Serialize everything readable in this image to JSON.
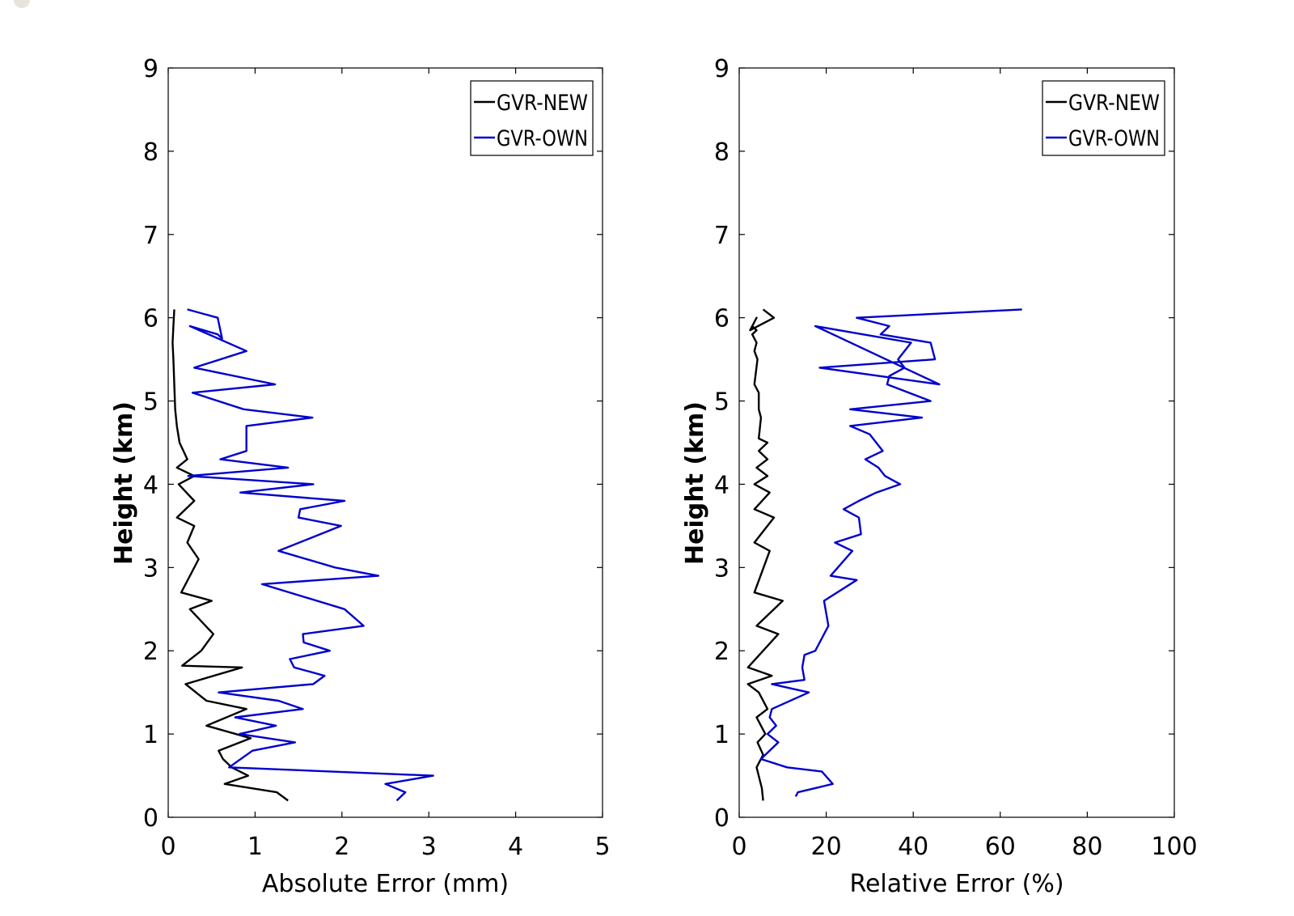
{
  "chart_data": [
    {
      "type": "line",
      "title": "",
      "xlabel": "Absolute Error (mm)",
      "ylabel": "Height (km)",
      "xlim": [
        0,
        5
      ],
      "ylim": [
        0,
        9
      ],
      "xticks": [
        0,
        1,
        2,
        3,
        4,
        5
      ],
      "yticks": [
        0,
        1,
        2,
        3,
        4,
        5,
        6,
        7,
        8,
        9
      ],
      "legend": "top-right",
      "grid": false,
      "series": [
        {
          "name": "GVR-NEW",
          "color": "#000000",
          "x": [
            1.38,
            1.25,
            0.65,
            0.92,
            0.73,
            0.63,
            0.58,
            0.95,
            0.44,
            0.9,
            0.44,
            0.2,
            0.85,
            0.16,
            0.38,
            0.52,
            0.25,
            0.5,
            0.15,
            0.35,
            0.22,
            0.3,
            0.1,
            0.3,
            0.12,
            0.3,
            0.1,
            0.22,
            0.13,
            0.1,
            0.08,
            0.07,
            0.06,
            0.05,
            0.06,
            0.07
          ],
          "y": [
            0.2,
            0.3,
            0.4,
            0.5,
            0.6,
            0.7,
            0.8,
            0.95,
            1.1,
            1.3,
            1.4,
            1.6,
            1.8,
            1.82,
            2.0,
            2.2,
            2.5,
            2.6,
            2.7,
            3.1,
            3.3,
            3.5,
            3.6,
            3.8,
            4.0,
            4.1,
            4.2,
            4.3,
            4.5,
            4.7,
            4.9,
            5.2,
            5.5,
            5.7,
            5.9,
            6.1
          ]
        },
        {
          "name": "GVR-OWN",
          "color": "#0000cc",
          "x": [
            2.63,
            2.73,
            2.5,
            3.05,
            0.7,
            0.97,
            1.46,
            0.82,
            1.24,
            0.77,
            1.55,
            1.27,
            0.58,
            1.67,
            1.8,
            1.45,
            1.4,
            1.86,
            1.56,
            1.55,
            2.25,
            2.03,
            1.08,
            2.42,
            1.92,
            1.27,
            1.99,
            1.5,
            1.52,
            2.03,
            0.83,
            1.67,
            0.23,
            1.38,
            0.6,
            0.9,
            0.9,
            1.66,
            0.87,
            0.28,
            1.23,
            0.3,
            0.9,
            0.25,
            0.57,
            0.62,
            0.57,
            0.22
          ],
          "y": [
            0.2,
            0.3,
            0.4,
            0.5,
            0.6,
            0.8,
            0.9,
            1.0,
            1.1,
            1.2,
            1.3,
            1.4,
            1.5,
            1.6,
            1.7,
            1.8,
            1.9,
            2.0,
            2.1,
            2.2,
            2.3,
            2.5,
            2.8,
            2.9,
            3.0,
            3.2,
            3.5,
            3.6,
            3.7,
            3.8,
            3.9,
            4.0,
            4.1,
            4.2,
            4.3,
            4.4,
            4.7,
            4.8,
            4.9,
            5.1,
            5.2,
            5.4,
            5.6,
            5.9,
            5.8,
            5.75,
            6.0,
            6.1
          ]
        }
      ]
    },
    {
      "type": "line",
      "title": "",
      "xlabel": "Relative Error (%)",
      "ylabel": "Height (km)",
      "xlim": [
        0,
        100
      ],
      "ylim": [
        0,
        9
      ],
      "xticks": [
        0,
        20,
        40,
        60,
        80,
        100
      ],
      "yticks": [
        0,
        1,
        2,
        3,
        4,
        5,
        6,
        7,
        8,
        9
      ],
      "legend": "top-right",
      "grid": false,
      "series": [
        {
          "name": "GVR-NEW",
          "color": "#000000",
          "x": [
            5.5,
            5.2,
            4.0,
            5.5,
            4.2,
            6.0,
            4.0,
            6.5,
            4.5,
            2.0,
            7.5,
            2.0,
            9.0,
            4.0,
            10.0,
            3.5,
            7.0,
            3.5,
            8.0,
            3.5,
            7.0,
            3.5,
            6.5,
            4.0,
            6.5,
            4.5,
            6.5,
            4.5,
            5.0,
            4.5,
            4.5,
            3.5,
            4.2,
            3.5,
            4.0,
            3.0,
            4.0,
            3.0,
            4.0,
            2.5,
            8.0,
            5.5
          ],
          "y": [
            0.2,
            0.35,
            0.6,
            0.75,
            0.9,
            1.0,
            1.2,
            1.3,
            1.5,
            1.6,
            1.7,
            1.8,
            2.2,
            2.3,
            2.6,
            2.7,
            3.2,
            3.3,
            3.6,
            3.7,
            3.9,
            4.0,
            4.1,
            4.2,
            4.3,
            4.4,
            4.5,
            4.55,
            4.8,
            4.9,
            5.1,
            5.2,
            5.5,
            5.6,
            5.7,
            5.8,
            5.85,
            5.9,
            6.0,
            5.85,
            6.0,
            6.1
          ]
        },
        {
          "name": "GVR-OWN",
          "color": "#0000cc",
          "x": [
            13.0,
            13.5,
            21.5,
            19.0,
            11.0,
            5.0,
            9.0,
            6.5,
            8.5,
            7.0,
            7.5,
            16.0,
            7.5,
            15.0,
            14.5,
            15.0,
            17.5,
            20.5,
            19.5,
            27.0,
            21.0,
            26.0,
            22.0,
            28.0,
            27.5,
            24.0,
            27.5,
            31.5,
            37.0,
            33.5,
            32.0,
            29.0,
            33.0,
            30.0,
            25.5,
            42.0,
            25.5,
            44.0,
            34.0,
            34.5,
            38.0,
            36.5,
            39.5,
            17.5,
            46.0,
            18.5,
            45.0,
            44.0,
            32.5,
            34.5,
            27.0,
            65.0
          ],
          "y": [
            0.25,
            0.3,
            0.4,
            0.55,
            0.6,
            0.7,
            0.9,
            1.0,
            1.1,
            1.2,
            1.3,
            1.5,
            1.6,
            1.65,
            1.8,
            1.95,
            2.0,
            2.3,
            2.6,
            2.85,
            2.9,
            3.2,
            3.3,
            3.4,
            3.6,
            3.7,
            3.8,
            3.9,
            4.0,
            4.1,
            4.2,
            4.3,
            4.4,
            4.6,
            4.7,
            4.8,
            4.9,
            5.0,
            5.2,
            5.3,
            5.4,
            5.5,
            5.7,
            5.9,
            5.2,
            5.4,
            5.5,
            5.7,
            5.8,
            5.9,
            6.0,
            6.1
          ]
        }
      ]
    }
  ]
}
